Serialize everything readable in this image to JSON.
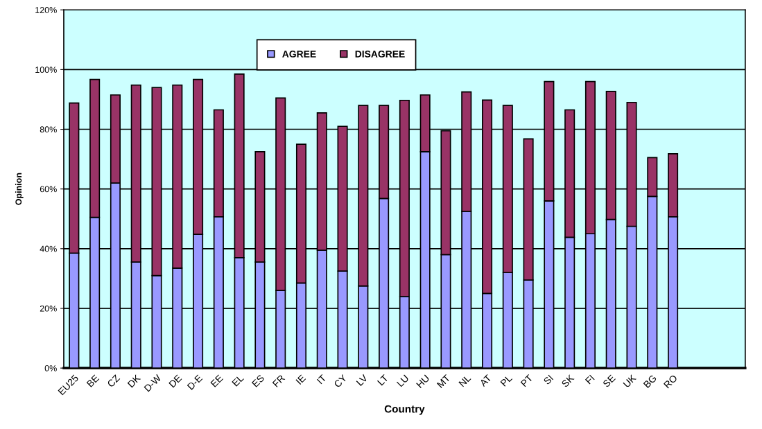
{
  "chart_data": {
    "type": "bar",
    "stacked": true,
    "xlabel": "Country",
    "ylabel": "Opinion",
    "categories": [
      "EU25",
      "BE",
      "CZ",
      "DK",
      "D-W",
      "DE",
      "D-E",
      "EE",
      "EL",
      "ES",
      "FR",
      "IE",
      "IT",
      "CY",
      "LV",
      "LT",
      "LU",
      "HU",
      "MT",
      "NL",
      "AT",
      "PL",
      "PT",
      "SI",
      "SK",
      "FI",
      "SE",
      "UK",
      "BG",
      "RO",
      null,
      null,
      null
    ],
    "series": [
      {
        "name": "AGREE",
        "color": "#9999ff",
        "values": [
          38.5,
          50.5,
          62,
          35.5,
          31,
          33.5,
          44.8,
          50.7,
          37,
          35.5,
          26,
          28.5,
          39.5,
          32.5,
          27.5,
          56.8,
          24,
          72.5,
          38,
          52.5,
          25,
          32,
          29.5,
          56,
          43.8,
          45,
          49.8,
          47.5,
          57.5,
          50.7,
          null,
          null,
          null
        ]
      },
      {
        "name": "DISAGREE",
        "color": "#993366",
        "values": [
          50.3,
          46.2,
          29.5,
          59.3,
          63,
          61.3,
          51.9,
          35.8,
          61.5,
          37,
          64.5,
          46.5,
          46,
          48.5,
          60.5,
          31.2,
          65.7,
          19,
          41.5,
          40,
          64.8,
          56,
          47.3,
          40,
          42.7,
          51,
          42.9,
          41.5,
          13,
          21.1,
          null,
          null,
          null
        ]
      }
    ],
    "ylim": [
      0,
      120
    ],
    "yticks": [
      {
        "value": 0,
        "label": "0%"
      },
      {
        "value": 20,
        "label": "20%"
      },
      {
        "value": 40,
        "label": "40%"
      },
      {
        "value": 60,
        "label": "60%"
      },
      {
        "value": 80,
        "label": "80%"
      },
      {
        "value": 100,
        "label": "100%"
      },
      {
        "value": 120,
        "label": "120%"
      }
    ],
    "grid": "y",
    "legend": "top"
  }
}
